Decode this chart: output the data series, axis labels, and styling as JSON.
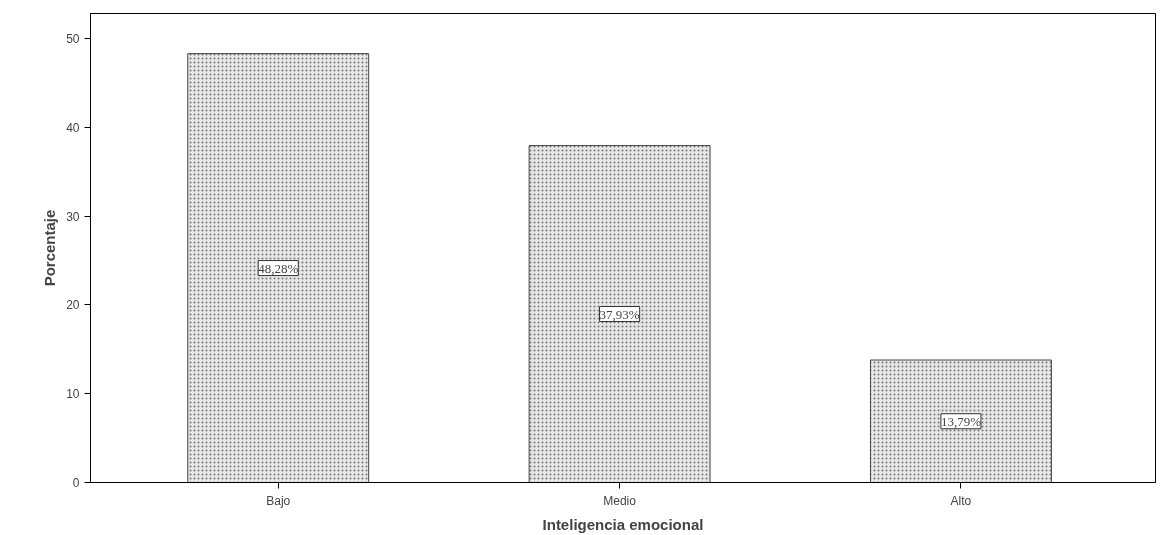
{
  "chart_data": {
    "type": "bar",
    "xlabel": "Inteligencia emocional",
    "ylabel": "Porcentaje",
    "categories": [
      "Bajo",
      "Medio",
      "Alto"
    ],
    "values": [
      48.28,
      37.93,
      13.79
    ],
    "value_labels": [
      "48,28%",
      "37,93%",
      "13,79%"
    ],
    "color": "#e6e6e6",
    "ylim": [
      0,
      52.8
    ],
    "yticks": [
      0,
      10,
      20,
      30,
      40,
      50
    ],
    "grid": false
  }
}
